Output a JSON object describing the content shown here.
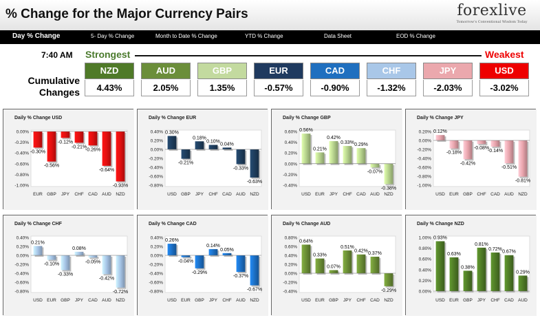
{
  "header": {
    "title": "% Change for the Major Currency Pairs",
    "logo": "forexlive",
    "logo_tagline": "Tomorrow's Conventional Wisdom Today"
  },
  "nav": {
    "items": [
      {
        "label": "Day % Change",
        "active": true
      },
      {
        "label": "5- Day % Change"
      },
      {
        "label": "Month to Date % Change"
      },
      {
        "label": "YTD % Change"
      },
      {
        "label": "Data Sheet"
      },
      {
        "label": "EOD % Change"
      }
    ]
  },
  "summary": {
    "time": "7:40 AM",
    "strongest": "Strongest",
    "weakest": "Weakest",
    "cumulative_label_1": "Cumulative",
    "cumulative_label_2": "Changes",
    "currencies": [
      {
        "code": "NZD",
        "value": "4.43%",
        "color": "#4f7a28"
      },
      {
        "code": "AUD",
        "value": "2.05%",
        "color": "#6b8e3a"
      },
      {
        "code": "GBP",
        "value": "1.35%",
        "color": "#c3da9f"
      },
      {
        "code": "EUR",
        "value": "-0.57%",
        "color": "#1f3a5f"
      },
      {
        "code": "CAD",
        "value": "-0.90%",
        "color": "#1f6fbf"
      },
      {
        "code": "CHF",
        "value": "-1.32%",
        "color": "#a9c7e8"
      },
      {
        "code": "JPY",
        "value": "-2.03%",
        "color": "#eba8ad"
      },
      {
        "code": "USD",
        "value": "-3.02%",
        "color": "#ee0000"
      }
    ]
  },
  "chart_data": [
    {
      "type": "bar",
      "title": "Daily % Change USD",
      "color": "#e21010",
      "categories": [
        "EUR",
        "GBP",
        "JPY",
        "CHF",
        "CAD",
        "AUD",
        "NZD"
      ],
      "values": [
        -0.3,
        -0.56,
        -0.12,
        -0.21,
        -0.26,
        -0.64,
        -0.93
      ],
      "labels": [
        "-0.30%",
        "-0.56%",
        "-0.12%",
        "-0.21%",
        "-0.26%",
        "-0.64%",
        "-0.93%"
      ],
      "yticks": [
        "0.00%",
        "-0.20%",
        "-0.40%",
        "-0.60%",
        "-0.80%",
        "-1.00%"
      ],
      "ylim": [
        -1.0,
        0.0
      ]
    },
    {
      "type": "bar",
      "title": "Daily % Change EUR",
      "color": "#1e3d5c",
      "categories": [
        "USD",
        "GBP",
        "JPY",
        "CHF",
        "CAD",
        "AUD",
        "NZD"
      ],
      "values": [
        0.3,
        -0.21,
        0.18,
        0.1,
        0.04,
        -0.33,
        -0.63
      ],
      "labels": [
        "0.30%",
        "-0.21%",
        "0.18%",
        "0.10%",
        "0.04%",
        "-0.33%",
        "-0.63%"
      ],
      "yticks": [
        "0.40%",
        "0.20%",
        "0.00%",
        "-0.20%",
        "-0.40%",
        "-0.60%",
        "-0.80%"
      ],
      "ylim": [
        -0.8,
        0.4
      ]
    },
    {
      "type": "bar",
      "title": "Daily % Change GBP",
      "color": "#b5d18c",
      "categories": [
        "USD",
        "EUR",
        "JPY",
        "CHF",
        "CAD",
        "AUD",
        "NZD"
      ],
      "values": [
        0.56,
        0.21,
        0.42,
        0.33,
        0.29,
        -0.07,
        -0.38
      ],
      "labels": [
        "0.56%",
        "0.21%",
        "0.42%",
        "0.33%",
        "0.29%",
        "-0.07%",
        "-0.38%"
      ],
      "yticks": [
        "0.60%",
        "0.40%",
        "0.20%",
        "0.00%",
        "-0.20%",
        "-0.40%"
      ],
      "ylim": [
        -0.4,
        0.6
      ]
    },
    {
      "type": "bar",
      "title": "Daily % Change JPY",
      "color": "#e8a4ac",
      "categories": [
        "USD",
        "EUR",
        "GBP",
        "CHF",
        "CAD",
        "AUD",
        "NZD"
      ],
      "values": [
        0.12,
        -0.18,
        -0.42,
        -0.08,
        -0.14,
        -0.51,
        -0.81
      ],
      "labels": [
        "0.12%",
        "-0.18%",
        "-0.42%",
        "-0.08%",
        "-0.14%",
        "-0.51%",
        "-0.81%"
      ],
      "yticks": [
        "0.20%",
        "0.00%",
        "-0.20%",
        "-0.40%",
        "-0.60%",
        "-0.80%",
        "-1.00%"
      ],
      "ylim": [
        -1.0,
        0.2
      ]
    },
    {
      "type": "bar",
      "title": "Daily % Change CHF",
      "color": "#a6c4e6",
      "categories": [
        "USD",
        "EUR",
        "GBP",
        "JPY",
        "CAD",
        "AUD",
        "NZD"
      ],
      "values": [
        0.21,
        -0.1,
        -0.33,
        0.08,
        -0.05,
        -0.42,
        -0.72
      ],
      "labels": [
        "0.21%",
        "-0.10%",
        "-0.33%",
        "0.08%",
        "-0.05%",
        "-0.42%",
        "-0.72%"
      ],
      "yticks": [
        "0.40%",
        "0.20%",
        "0.00%",
        "-0.20%",
        "-0.40%",
        "-0.60%",
        "-0.80%"
      ],
      "ylim": [
        -0.8,
        0.4
      ]
    },
    {
      "type": "bar",
      "title": "Daily % Change CAD",
      "color": "#1c6fc4",
      "categories": [
        "USD",
        "EUR",
        "GBP",
        "JPY",
        "CHF",
        "AUD",
        "NZD"
      ],
      "values": [
        0.26,
        -0.04,
        -0.29,
        0.14,
        0.05,
        -0.37,
        -0.67
      ],
      "labels": [
        "0.26%",
        "-0.04%",
        "-0.29%",
        "0.14%",
        "0.05%",
        "-0.37%",
        "-0.67%"
      ],
      "yticks": [
        "0.40%",
        "0.20%",
        "0.00%",
        "-0.20%",
        "-0.40%",
        "-0.60%",
        "-0.80%"
      ],
      "ylim": [
        -0.8,
        0.4
      ]
    },
    {
      "type": "bar",
      "title": "Daily % Change AUD",
      "color": "#6a8d35",
      "categories": [
        "USD",
        "EUR",
        "GBP",
        "JPY",
        "CHF",
        "CAD",
        "NZD"
      ],
      "values": [
        0.64,
        0.33,
        0.07,
        0.51,
        0.42,
        0.37,
        -0.29
      ],
      "labels": [
        "0.64%",
        "0.33%",
        "0.07%",
        "0.51%",
        "0.42%",
        "0.37%",
        "-0.29%"
      ],
      "yticks": [
        "0.80%",
        "0.60%",
        "0.40%",
        "0.20%",
        "0.00%",
        "-0.20%",
        "-0.40%"
      ],
      "ylim": [
        -0.4,
        0.8
      ]
    },
    {
      "type": "bar",
      "title": "Daily % Change NZD",
      "color": "#4e7a26",
      "categories": [
        "USD",
        "EUR",
        "GBP",
        "JPY",
        "CHF",
        "CAD",
        "AUD"
      ],
      "values": [
        0.93,
        0.63,
        0.38,
        0.81,
        0.72,
        0.67,
        0.29
      ],
      "labels": [
        "0.93%",
        "0.63%",
        "0.38%",
        "0.81%",
        "0.72%",
        "0.67%",
        "0.29%"
      ],
      "yticks": [
        "1.00%",
        "0.80%",
        "0.60%",
        "0.40%",
        "0.20%",
        "0.00%"
      ],
      "ylim": [
        0.0,
        1.0
      ]
    }
  ]
}
